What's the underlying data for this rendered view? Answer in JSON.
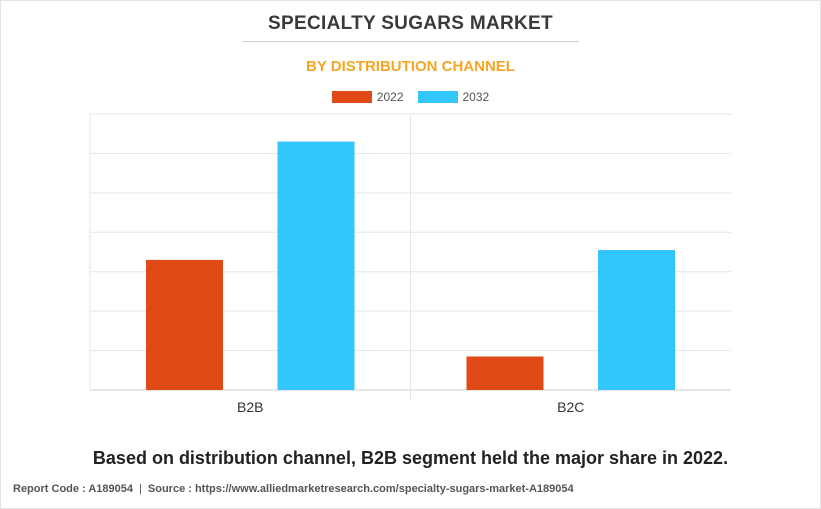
{
  "title": "SPECIALTY SUGARS MARKET",
  "subtitle": "BY DISTRIBUTION CHANNEL",
  "colors": {
    "title": "#3a3a3a",
    "subtitle": "#f5a623",
    "series_2022": "#e04a17",
    "series_2032": "#33c6fb"
  },
  "chart_data": {
    "type": "bar",
    "categories": [
      "B2B",
      "B2C"
    ],
    "series": [
      {
        "name": "2022",
        "color": "#e04a17",
        "values": [
          3.3,
          0.85
        ]
      },
      {
        "name": "2032",
        "color": "#33c6fb",
        "values": [
          6.3,
          3.55
        ]
      }
    ],
    "ylim": [
      0,
      7
    ],
    "grid": true,
    "legend_position": "top-center",
    "xlabel": "",
    "ylabel": ""
  },
  "caption": "Based on distribution channel, B2B segment held the major share in 2022.",
  "footer": {
    "report_code": "Report Code : A189054",
    "separator": "|",
    "source": "Source : https://www.alliedmarketresearch.com/specialty-sugars-market-A189054"
  }
}
